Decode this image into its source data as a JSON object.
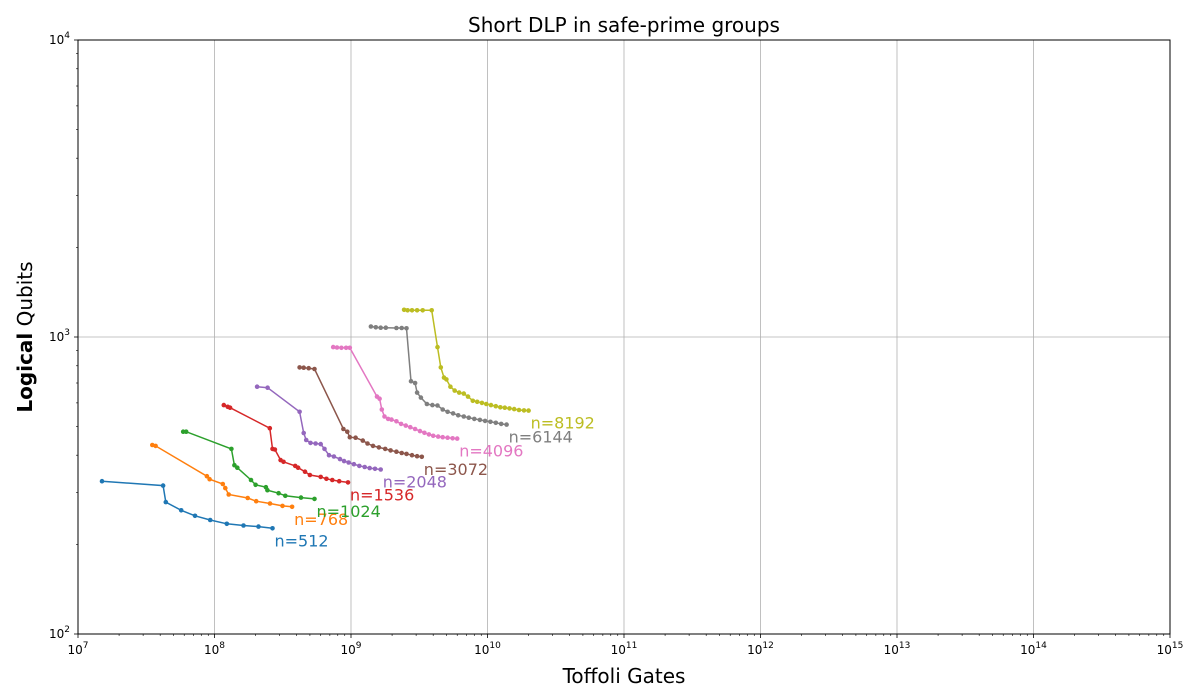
{
  "chart_data": {
    "type": "line",
    "title": "Short DLP in safe-prime groups",
    "xlabel": "Toffoli Gates",
    "ylabel_bold": "Logical",
    "ylabel_rest": " Qubits",
    "xscale": "log",
    "yscale": "log",
    "xlim": [
      10000000.0,
      1000000000000000.0
    ],
    "ylim": [
      100,
      10000
    ],
    "xticks": [
      {
        "base": "10",
        "exp": "7",
        "value": 10000000.0
      },
      {
        "base": "10",
        "exp": "8",
        "value": 100000000.0
      },
      {
        "base": "10",
        "exp": "9",
        "value": 1000000000.0
      },
      {
        "base": "10",
        "exp": "10",
        "value": 10000000000.0
      },
      {
        "base": "10",
        "exp": "11",
        "value": 100000000000.0
      },
      {
        "base": "10",
        "exp": "12",
        "value": 1000000000000.0
      },
      {
        "base": "10",
        "exp": "13",
        "value": 10000000000000.0
      },
      {
        "base": "10",
        "exp": "14",
        "value": 100000000000000.0
      },
      {
        "base": "10",
        "exp": "15",
        "value": 1000000000000000.0
      }
    ],
    "yticks": [
      {
        "base": "10",
        "exp": "2",
        "value": 100
      },
      {
        "base": "10",
        "exp": "3",
        "value": 1000
      },
      {
        "base": "10",
        "exp": "4",
        "value": 10000
      }
    ],
    "grid": true,
    "series": [
      {
        "name": "n=512",
        "color": "#1f77b4",
        "x": [
          15000000.0,
          42000000.0,
          44000000.0,
          57000000.0,
          72000000.0,
          93000000.0,
          123000000.0,
          163000000.0,
          210000000.0,
          266000000.0
        ],
        "y": [
          327,
          316,
          278,
          261,
          250,
          242,
          235,
          232,
          230,
          227
        ]
      },
      {
        "name": "n=768",
        "color": "#ff7f0e",
        "x": [
          35000000.0,
          37000000.0,
          88000000.0,
          92000000.0,
          115000000.0,
          120000000.0,
          127000000.0,
          175000000.0,
          202000000.0,
          255000000.0,
          315000000.0,
          370000000.0
        ],
        "y": [
          433,
          430,
          340,
          332,
          320,
          310,
          295,
          287,
          280,
          275,
          270,
          268
        ]
      },
      {
        "name": "n=1024",
        "color": "#2ca02c",
        "x": [
          59000000.0,
          62000000.0,
          133000000.0,
          140000000.0,
          147000000.0,
          185000000.0,
          200000000.0,
          238000000.0,
          244000000.0,
          295000000.0,
          330000000.0,
          430000000.0,
          540000000.0
        ],
        "y": [
          480,
          480,
          420,
          370,
          363,
          330,
          318,
          312,
          305,
          298,
          292,
          288,
          285
        ]
      },
      {
        "name": "n=1536",
        "color": "#d62728",
        "x": [
          117000000.0,
          125000000.0,
          130000000.0,
          254000000.0,
          266000000.0,
          277000000.0,
          305000000.0,
          320000000.0,
          390000000.0,
          410000000.0,
          460000000.0,
          500000000.0,
          600000000.0,
          660000000.0,
          730000000.0,
          820000000.0,
          950000000.0
        ],
        "y": [
          590,
          582,
          578,
          493,
          420,
          418,
          385,
          380,
          368,
          363,
          352,
          343,
          338,
          333,
          330,
          327,
          324
        ]
      },
      {
        "name": "n=2048",
        "color": "#9467bd",
        "x": [
          205000000.0,
          245000000.0,
          420000000.0,
          450000000.0,
          470000000.0,
          505000000.0,
          550000000.0,
          600000000.0,
          640000000.0,
          690000000.0,
          750000000.0,
          830000000.0,
          890000000.0,
          960000000.0,
          1050000000.0,
          1150000000.0,
          1260000000.0,
          1370000000.0,
          1500000000.0,
          1650000000.0
        ],
        "y": [
          680,
          675,
          560,
          475,
          450,
          440,
          438,
          436,
          420,
          400,
          396,
          388,
          382,
          378,
          373,
          368,
          365,
          362,
          360,
          358
        ]
      },
      {
        "name": "n=3072",
        "color": "#8c564b",
        "x": [
          420000000.0,
          450000000.0,
          490000000.0,
          540000000.0,
          880000000.0,
          940000000.0,
          980000000.0,
          1080000000.0,
          1220000000.0,
          1320000000.0,
          1450000000.0,
          1600000000.0,
          1780000000.0,
          1950000000.0,
          2150000000.0,
          2350000000.0,
          2550000000.0,
          2800000000.0,
          3050000000.0,
          3300000000.0
        ],
        "y": [
          790,
          788,
          785,
          780,
          490,
          480,
          460,
          458,
          448,
          438,
          430,
          425,
          420,
          415,
          411,
          407,
          404,
          400,
          397,
          395
        ]
      },
      {
        "name": "n=4096",
        "color": "#e377c2",
        "x": [
          740000000.0,
          790000000.0,
          850000000.0,
          920000000.0,
          980000000.0,
          1550000000.0,
          1620000000.0,
          1680000000.0,
          1760000000.0,
          1870000000.0,
          1980000000.0,
          2150000000.0,
          2330000000.0,
          2520000000.0,
          2720000000.0,
          2950000000.0,
          3200000000.0,
          3450000000.0,
          3720000000.0,
          4000000000.0,
          4350000000.0,
          4700000000.0,
          5100000000.0,
          5550000000.0,
          6000000000.0
        ],
        "y": [
          925,
          922,
          920,
          920,
          920,
          630,
          620,
          570,
          540,
          530,
          527,
          520,
          510,
          503,
          497,
          490,
          482,
          476,
          470,
          465,
          462,
          460,
          458,
          456,
          455
        ]
      },
      {
        "name": "n=6144",
        "color": "#7f7f7f",
        "x": [
          1400000000.0,
          1520000000.0,
          1650000000.0,
          1800000000.0,
          2150000000.0,
          2350000000.0,
          2550000000.0,
          2750000000.0,
          2950000000.0,
          3050000000.0,
          3250000000.0,
          3600000000.0,
          3950000000.0,
          4300000000.0,
          4700000000.0,
          5100000000.0,
          5600000000.0,
          6100000000.0,
          6700000000.0,
          7300000000.0,
          8000000000.0,
          8800000000.0,
          9600000000.0,
          10500000000.0,
          11500000000.0,
          12600000000.0,
          13800000000.0
        ],
        "y": [
          1085,
          1078,
          1075,
          1075,
          1072,
          1072,
          1070,
          710,
          700,
          650,
          625,
          595,
          590,
          588,
          570,
          560,
          553,
          545,
          540,
          535,
          530,
          526,
          522,
          518,
          514,
          510,
          507
        ]
      },
      {
        "name": "n=8192",
        "color": "#bcbd22",
        "x": [
          2450000000.0,
          2600000000.0,
          2800000000.0,
          3050000000.0,
          3350000000.0,
          3900000000.0,
          4300000000.0,
          4550000000.0,
          4800000000.0,
          5000000000.0,
          5350000000.0,
          5750000000.0,
          6200000000.0,
          6700000000.0,
          7200000000.0,
          7800000000.0,
          8400000000.0,
          9100000000.0,
          9800000000.0,
          10600000000.0,
          11500000000.0,
          12400000000.0,
          13400000000.0,
          14500000000.0,
          15700000000.0,
          17000000000.0,
          18500000000.0,
          20000000000.0
        ],
        "y": [
          1235,
          1230,
          1230,
          1230,
          1230,
          1230,
          925,
          790,
          730,
          720,
          680,
          660,
          650,
          645,
          630,
          610,
          605,
          600,
          595,
          590,
          585,
          580,
          578,
          575,
          572,
          568,
          566,
          565
        ]
      }
    ]
  }
}
